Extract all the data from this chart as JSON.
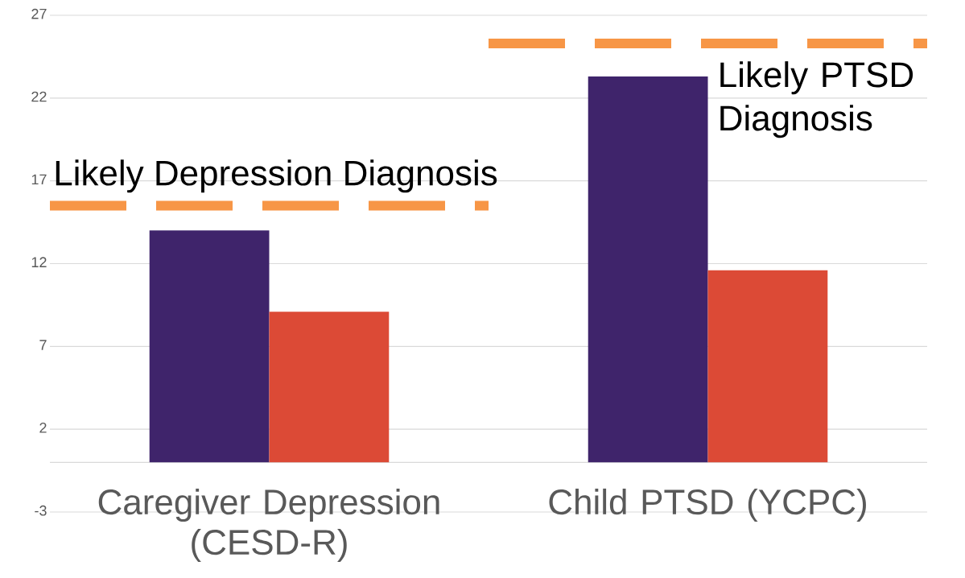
{
  "chart_data": {
    "type": "bar",
    "categories": [
      "Caregiver Depression (CESD-R)",
      "Child PTSD (YCPC)"
    ],
    "series": [
      {
        "color": "#3f246b",
        "values": [
          14.0,
          23.3
        ]
      },
      {
        "color": "#dc4a36",
        "values": [
          9.1,
          11.6
        ]
      }
    ],
    "ylim": [
      -3,
      27
    ],
    "yticks": [
      -3,
      2,
      7,
      12,
      17,
      22,
      27
    ],
    "grid": "y",
    "ref_lines": [
      {
        "axis": "y",
        "value": 15.5,
        "label": "Likely Depression Diagnosis",
        "color": "#f79646",
        "line_style": "dashed"
      },
      {
        "axis": "y",
        "value": 25.3,
        "label": "Likely PTSD Diagnosis",
        "color": "#f79646",
        "line_style": "dashed"
      }
    ]
  }
}
